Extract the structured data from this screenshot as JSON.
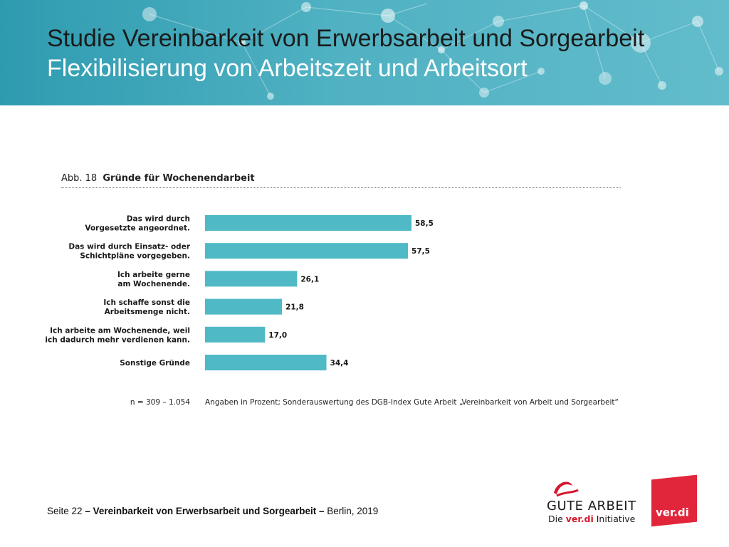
{
  "header": {
    "title": "Studie Vereinbarkeit von Erwerbsarbeit und Sorgearbeit",
    "subtitle": "Flexibilisierung von Arbeitszeit und Arbeitsort",
    "background_color": "#4fb1c2"
  },
  "figure": {
    "number": "Abb. 18",
    "title": "Gründe für Wochenendarbeit"
  },
  "chart_data": {
    "type": "bar",
    "orientation": "horizontal",
    "bar_color": "#4fb9c6",
    "categories": [
      [
        "Das wird durch",
        "Vorgesetzte angeordnet."
      ],
      [
        "Das wird durch Einsatz- oder",
        "Schichtpläne vorgegeben."
      ],
      [
        "Ich arbeite gerne",
        "am Wochenende."
      ],
      [
        "Ich schaffe sonst die",
        "Arbeitsmenge nicht."
      ],
      [
        "Ich arbeite am Wochenende, weil",
        "ich dadurch mehr verdienen kann."
      ],
      [
        "Sonstige Gründe"
      ]
    ],
    "values": [
      58.5,
      57.5,
      26.1,
      21.8,
      17.0,
      34.4
    ],
    "value_labels": [
      "58,5",
      "57,5",
      "26,1",
      "21,8",
      "17,0",
      "34,4"
    ],
    "xlim": [
      0,
      100
    ]
  },
  "footnote": {
    "n": "n = 309 – 1.054",
    "source": "Angaben in Prozent; Sonderauswertung des DGB-Index Gute Arbeit „Vereinbarkeit von Arbeit und Sorgearbeit“"
  },
  "footer": {
    "page": "Seite 22",
    "dash": "–",
    "study": "Vereinbarkeit von Erwerbsarbeit und Sorgearbeit",
    "place_year": "Berlin, 2019"
  },
  "logos": {
    "gute_arbeit": "GUTE ARBEIT",
    "gute_sub_pre": "Die ",
    "gute_sub_verdi": "ver.di",
    "gute_sub_post": " Initiative",
    "verdi": "ver.di",
    "verdi_color": "#e1263b"
  }
}
